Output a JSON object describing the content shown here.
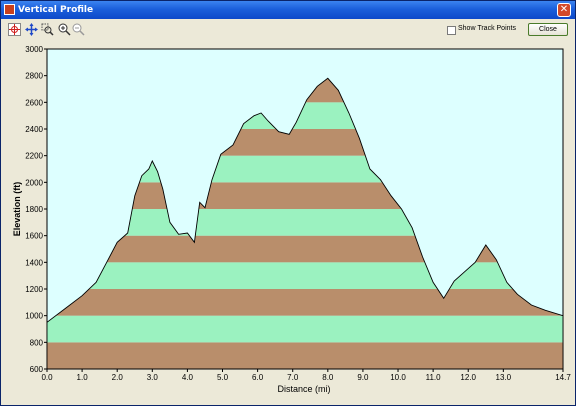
{
  "window": {
    "title": "Vertical Profile",
    "close_glyph": "✕"
  },
  "toolbar": {
    "tools": [
      "select-cross-icon",
      "pan-icon",
      "zoom-rect-icon",
      "zoom-in-icon",
      "zoom-out-icon"
    ],
    "show_track_points_label": "Show Track Points",
    "show_track_points_checked": false,
    "close_label": "Close"
  },
  "colors": {
    "plot_background": "#DDFFFF",
    "band_brown": "#B98E6B",
    "band_green": "#9BF2C0",
    "outline": "#000000"
  },
  "chart_data": {
    "type": "area",
    "xlabel": "Distance   (mi)",
    "ylabel": "Elevation (ft)",
    "xlim": [
      0,
      14.7
    ],
    "ylim": [
      600,
      3000
    ],
    "x_ticks": [
      "0.0",
      "1.0",
      "2.0",
      "3.0",
      "4.0",
      "5.0",
      "6.0",
      "7.0",
      "8.0",
      "9.0",
      "10.0",
      "11.0",
      "12.0",
      "13.0",
      "14.7"
    ],
    "x_tick_values": [
      0,
      1,
      2,
      3,
      4,
      5,
      6,
      7,
      8,
      9,
      10,
      11,
      12,
      13,
      14.7
    ],
    "y_ticks": [
      600,
      800,
      1000,
      1200,
      1400,
      1600,
      1800,
      2000,
      2200,
      2400,
      2600,
      2800,
      3000
    ],
    "grid": false,
    "bands": {
      "step": 200,
      "start": 600
    },
    "x": [
      0,
      0.5,
      1.0,
      1.4,
      1.7,
      2.0,
      2.3,
      2.5,
      2.7,
      2.9,
      3.0,
      3.15,
      3.3,
      3.5,
      3.75,
      4.0,
      4.2,
      4.35,
      4.5,
      4.7,
      4.95,
      5.3,
      5.6,
      5.9,
      6.1,
      6.3,
      6.6,
      6.9,
      7.1,
      7.4,
      7.7,
      8.0,
      8.3,
      8.6,
      8.9,
      9.2,
      9.5,
      9.8,
      10.1,
      10.4,
      10.7,
      11.0,
      11.3,
      11.6,
      11.9,
      12.2,
      12.5,
      12.8,
      13.1,
      13.4,
      13.8,
      14.2,
      14.7
    ],
    "y": [
      950,
      1050,
      1150,
      1250,
      1400,
      1550,
      1620,
      1900,
      2050,
      2100,
      2160,
      2080,
      1950,
      1700,
      1610,
      1620,
      1550,
      1850,
      1810,
      2020,
      2210,
      2280,
      2440,
      2500,
      2520,
      2460,
      2380,
      2360,
      2450,
      2620,
      2720,
      2780,
      2690,
      2520,
      2330,
      2100,
      2020,
      1900,
      1800,
      1660,
      1440,
      1250,
      1130,
      1260,
      1330,
      1400,
      1530,
      1420,
      1250,
      1160,
      1080,
      1040,
      1000
    ]
  }
}
